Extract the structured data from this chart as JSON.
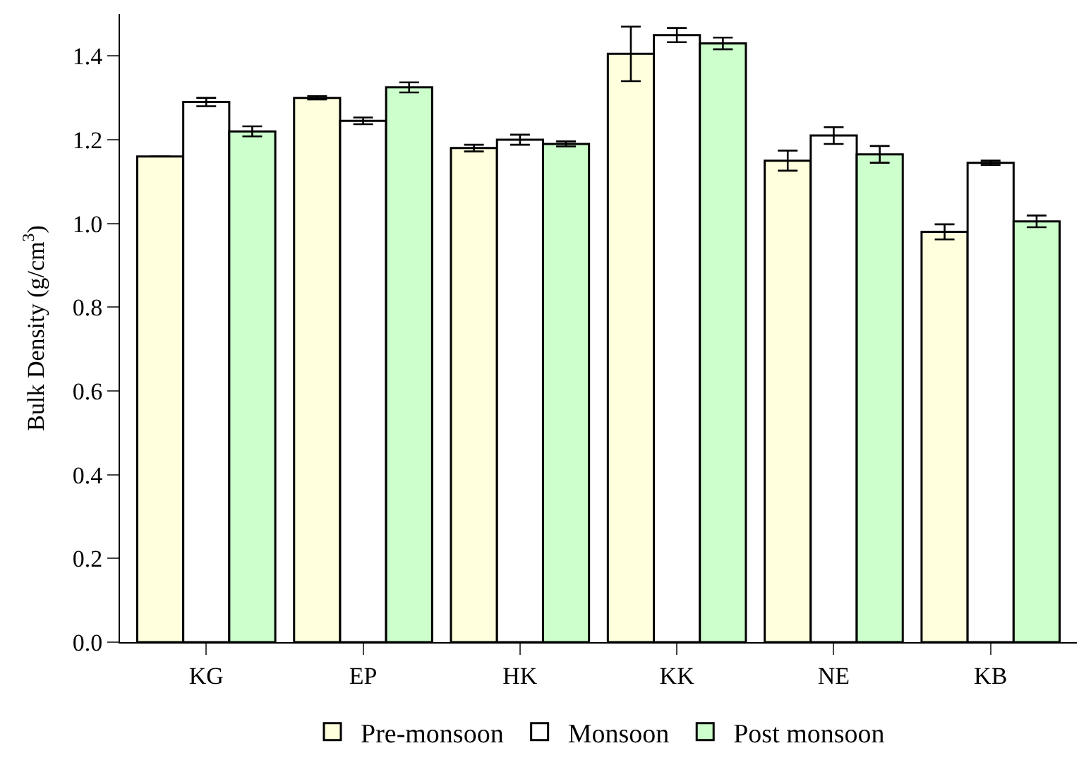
{
  "chart_data": {
    "type": "bar",
    "ylabel": "Bulk Density (g/cm$^{3}$)",
    "categories": [
      "KG",
      "EP",
      "HK",
      "KK",
      "NE",
      "KB"
    ],
    "series": [
      {
        "name": "Pre-monsoon",
        "color": "#ffffdd",
        "values": [
          1.16,
          1.3,
          1.18,
          1.405,
          1.15,
          0.98
        ],
        "errors": [
          null,
          0.004,
          0.008,
          0.065,
          0.024,
          0.018
        ]
      },
      {
        "name": "Monsoon",
        "color": "#ffffff",
        "values": [
          1.29,
          1.245,
          1.2,
          1.45,
          1.21,
          1.145
        ],
        "errors": [
          0.01,
          0.008,
          0.012,
          0.017,
          0.02,
          0.005
        ]
      },
      {
        "name": "Post monsoon",
        "color": "#ccffcc",
        "values": [
          1.22,
          1.325,
          1.19,
          1.43,
          1.165,
          1.005
        ],
        "errors": [
          0.012,
          0.012,
          0.006,
          0.014,
          0.02,
          0.014
        ]
      }
    ],
    "ylim": [
      0,
      1.5
    ],
    "yticks": [
      {
        "value": 0,
        "label": "0.0"
      },
      {
        "value": 0.2,
        "label": "0.2"
      },
      {
        "value": 0.4,
        "label": "0.4"
      },
      {
        "value": 0.6,
        "label": "0.6"
      },
      {
        "value": 0.8,
        "label": "0.8"
      },
      {
        "value": 1.0,
        "label": "1.0"
      },
      {
        "value": 1.2,
        "label": "1.2"
      },
      {
        "value": 1.4,
        "label": "1.4"
      }
    ],
    "legend": "bottom"
  }
}
